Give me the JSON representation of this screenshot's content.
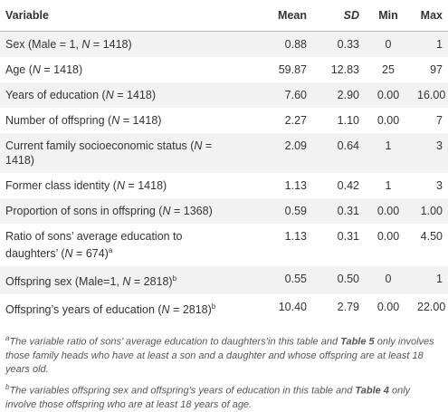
{
  "table": {
    "header": [
      "Variable",
      "Mean",
      "SD",
      "Min",
      "Max"
    ],
    "rows": [
      [
        {
          "text": "Sex (Male = 1, N = 1418)"
        },
        "0.88",
        "0.33",
        "0",
        "1"
      ],
      [
        {
          "text": "Age (N = 1418)"
        },
        "59.87",
        "12.83",
        "25",
        "97"
      ],
      [
        {
          "text": "Years of education (N = 1418)"
        },
        "7.60",
        "2.90",
        "0.00",
        "16.00"
      ],
      [
        {
          "text": "Number of offspring (N = 1418)"
        },
        "2.27",
        "1.10",
        "0.00",
        "7"
      ],
      [
        {
          "text": "Current family socioeconomic status (N = 1418)"
        },
        "2.09",
        "0.64",
        "1",
        "3"
      ],
      [
        {
          "text": "Former class identity (N = 1418)"
        },
        "1.13",
        "0.42",
        "1",
        "3"
      ],
      [
        {
          "text": "Proportion of sons in offspring (N = 1368)"
        },
        "0.59",
        "0.31",
        "0.00",
        "1.00"
      ],
      [
        {
          "text": "Ratio of sons’ average education to daughters’ (N = 674)",
          "sup": "a"
        },
        "1.13",
        "0.31",
        "0.00",
        "4.50"
      ],
      [
        {
          "text": "Offspring sex (Male=1, N = 2818)",
          "sup": "b"
        },
        "0.55",
        "0.50",
        "0",
        "1"
      ],
      [
        {
          "text": "Offspring’s years of education (N = 2818)",
          "sup": "b"
        },
        "10.40",
        "2.79",
        "0.00",
        "22.00"
      ]
    ],
    "footnotes": [
      {
        "mark": "a",
        "text": "The variable ratio of sons’ average education to daughters’in this table and Table 5 only involves those family heads who have at least a son and a daughter and whose offspring are at least 18 years old."
      },
      {
        "mark": "b",
        "text": "The variables offspring sex and offspring’s years of education in this table and Table 4 only involve those offspring who are at least 18 years of age."
      }
    ]
  }
}
